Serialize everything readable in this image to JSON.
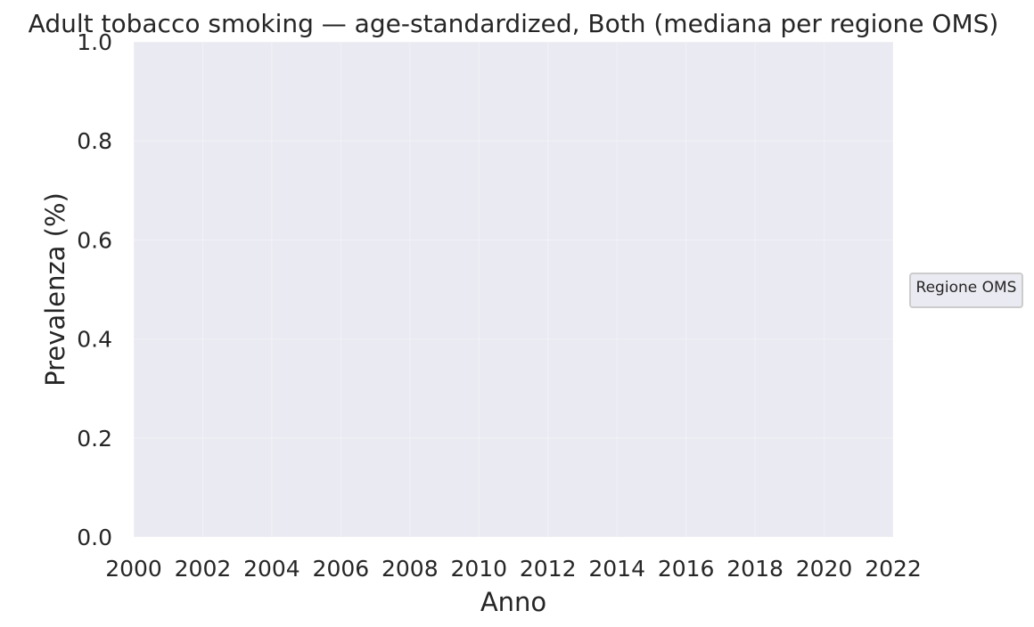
{
  "chart_data": {
    "type": "line",
    "title": "Adult tobacco smoking — age-standardized, Both (mediana per regione OMS)",
    "xlabel": "Anno",
    "ylabel": "Prevalenza (%)",
    "xlim": [
      2000,
      2022
    ],
    "ylim": [
      0.0,
      1.0
    ],
    "x_ticks": [
      "2000",
      "2002",
      "2004",
      "2006",
      "2008",
      "2010",
      "2012",
      "2014",
      "2016",
      "2018",
      "2020",
      "2022"
    ],
    "y_ticks": [
      "0.0",
      "0.2",
      "0.4",
      "0.6",
      "0.8",
      "1.0"
    ],
    "series": [],
    "grid": true,
    "legend": {
      "title": "Regione OMS",
      "placement": "right"
    }
  },
  "colors": {
    "plot_background": "#EAEAF2",
    "grid": "#FFFFFF",
    "text": "#262626",
    "legend_background": "#EAEAF2",
    "legend_border": "#CCCCCC"
  }
}
